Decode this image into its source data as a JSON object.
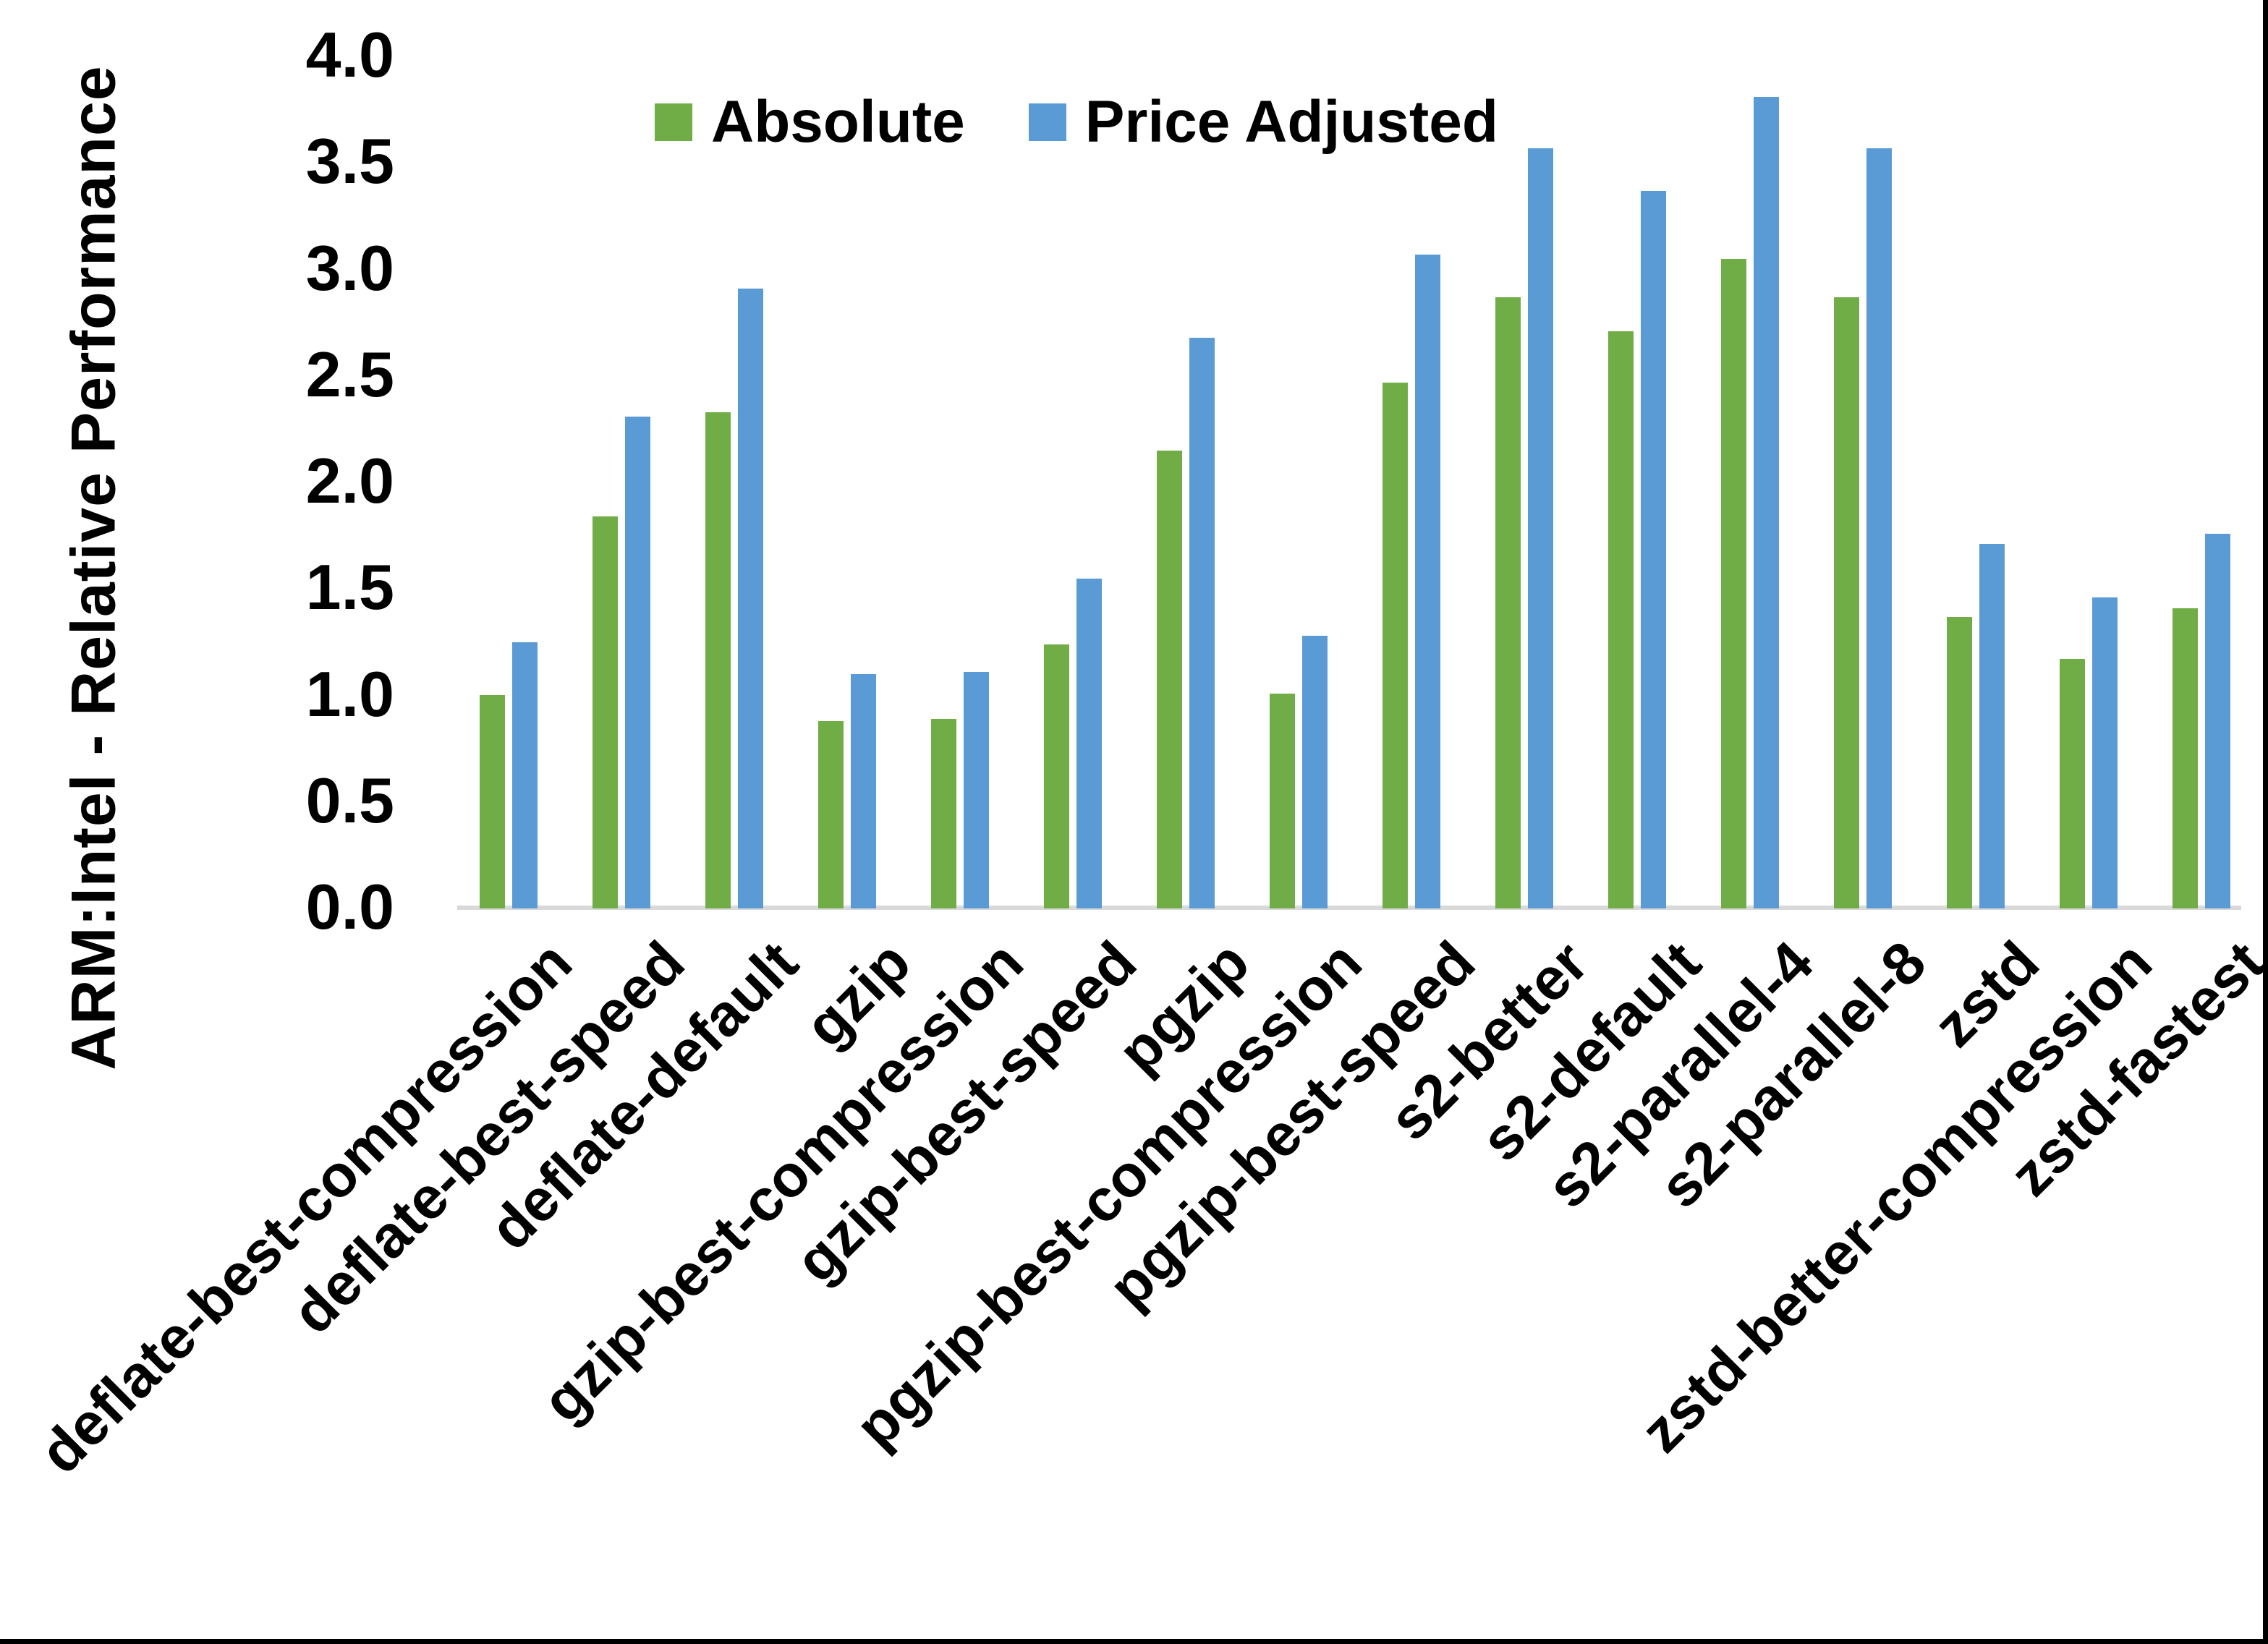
{
  "chart_data": {
    "type": "bar",
    "title": "",
    "ylabel": "ARM:Intel - Relative Performance",
    "xlabel": "",
    "ylim": [
      0.0,
      4.0
    ],
    "ytick_step": 0.5,
    "yticks": [
      "0.0",
      "0.5",
      "1.0",
      "1.5",
      "2.0",
      "2.5",
      "3.0",
      "3.5",
      "4.0"
    ],
    "grid": false,
    "legend_position": "top",
    "categories": [
      "deflate-best-compression",
      "deflate-best-speed",
      "deflate-default",
      "gzip",
      "gzip-best-compression",
      "gzip-best-speed",
      "pgzip",
      "pgzip-best-compression",
      "pgzip-best-speed",
      "s2-better",
      "s2-default",
      "s2-parallel-4",
      "s2-parallel-8",
      "zstd",
      "zstd-better-compression",
      "zstd-fastest"
    ],
    "series": [
      {
        "name": "Absolute",
        "color": "#70AD47",
        "values": [
          1.0,
          1.84,
          2.33,
          0.88,
          0.89,
          1.24,
          2.15,
          1.01,
          2.47,
          2.87,
          2.71,
          3.05,
          2.87,
          1.37,
          1.17,
          1.41
        ]
      },
      {
        "name": "Price Adjusted",
        "color": "#5B9BD5",
        "values": [
          1.25,
          2.31,
          2.91,
          1.1,
          1.11,
          1.55,
          2.68,
          1.28,
          3.07,
          3.57,
          3.37,
          3.81,
          3.57,
          1.71,
          1.46,
          1.76
        ]
      }
    ],
    "colors": {
      "axis_line": "#d9d9d9",
      "text": "#000000",
      "background": "#ffffff",
      "edge_border": "#000000"
    }
  }
}
